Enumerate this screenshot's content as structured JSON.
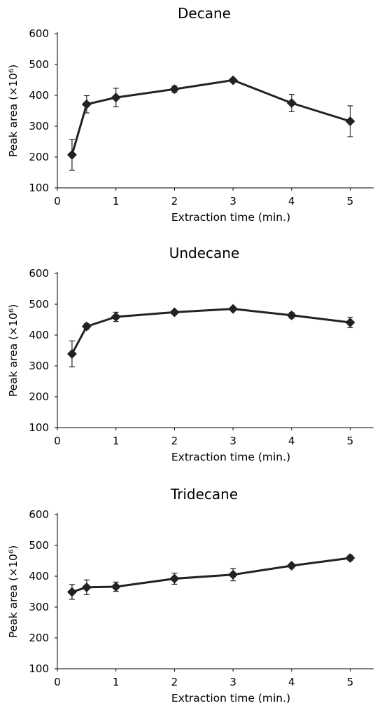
{
  "chart_data": [
    {
      "type": "line",
      "title": "Decane",
      "xlabel": "Extraction time  (min.)",
      "ylabel": "Peak area (×10⁶)",
      "xlim": [
        0,
        5.4
      ],
      "ylim": [
        100,
        600
      ],
      "xticks": [
        0,
        1,
        2,
        3,
        4,
        5
      ],
      "yticks": [
        100,
        200,
        300,
        400,
        500,
        600
      ],
      "grid": false,
      "series": [
        {
          "color": "#222222",
          "marker": "diamond",
          "x": [
            0.25,
            0.5,
            1,
            2,
            3,
            4,
            5
          ],
          "y": [
            207,
            371,
            393,
            420,
            449,
            375,
            316
          ],
          "error": [
            50,
            28,
            30,
            10,
            5,
            28,
            50
          ]
        }
      ]
    },
    {
      "type": "line",
      "title": "Undecane",
      "xlabel": "Extraction time  (min.)",
      "ylabel": "Peak area (×10⁶)",
      "xlim": [
        0,
        5.4
      ],
      "ylim": [
        100,
        600
      ],
      "xticks": [
        0,
        1,
        2,
        3,
        4,
        5
      ],
      "yticks": [
        100,
        200,
        300,
        400,
        500,
        600
      ],
      "grid": false,
      "series": [
        {
          "color": "#222222",
          "marker": "diamond",
          "x": [
            0.25,
            0.5,
            1,
            2,
            3,
            4,
            5
          ],
          "y": [
            339,
            428,
            459,
            474,
            485,
            464,
            441
          ],
          "error": [
            42,
            9,
            15,
            6,
            5,
            9,
            17
          ]
        }
      ]
    },
    {
      "type": "line",
      "title": "Tridecane",
      "xlabel": "Extraction time  (min.)",
      "ylabel": "Peak area (×10⁶)",
      "xlim": [
        0,
        5.4
      ],
      "ylim": [
        100,
        600
      ],
      "xticks": [
        0,
        1,
        2,
        3,
        4,
        5
      ],
      "yticks": [
        100,
        200,
        300,
        400,
        500,
        600
      ],
      "grid": false,
      "series": [
        {
          "color": "#222222",
          "marker": "diamond",
          "x": [
            0.25,
            0.5,
            1,
            2,
            3,
            4,
            5
          ],
          "y": [
            349,
            364,
            366,
            392,
            405,
            434,
            459
          ],
          "error": [
            24,
            24,
            15,
            18,
            20,
            7,
            8
          ]
        }
      ]
    }
  ]
}
